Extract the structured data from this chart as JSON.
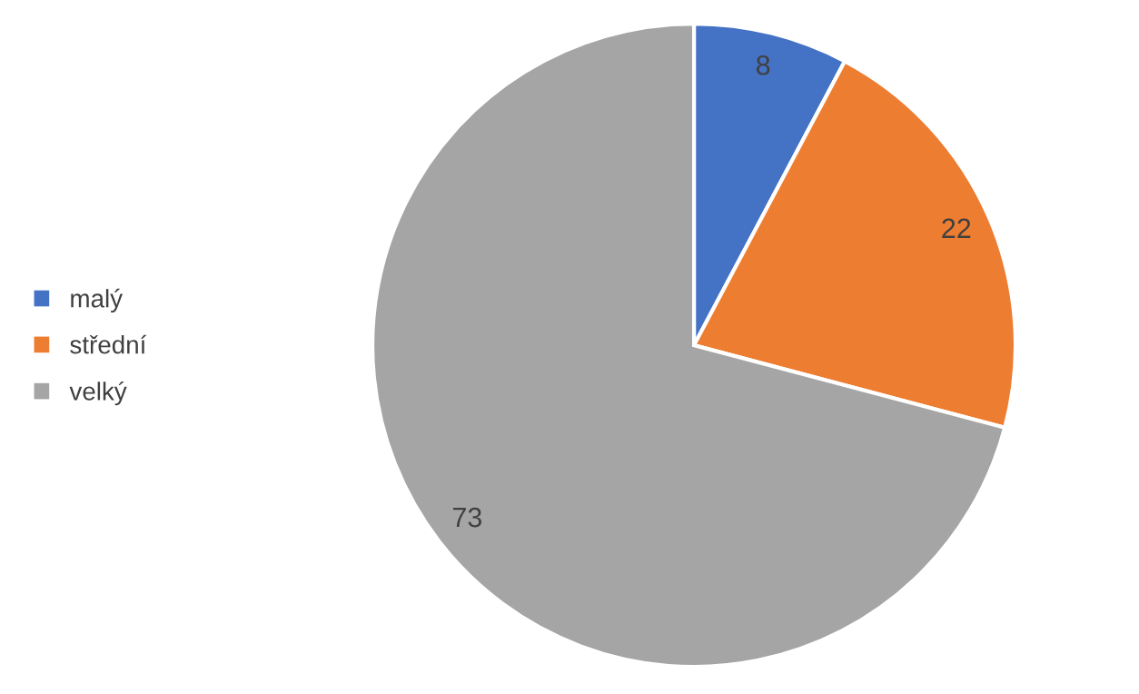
{
  "chart_data": {
    "type": "pie",
    "categories": [
      "malý",
      "střední",
      "velký"
    ],
    "values": [
      8,
      22,
      73
    ],
    "colors": [
      "#4472c4",
      "#ed7d31",
      "#a5a5a5"
    ],
    "data_labels": true,
    "legend": "left"
  }
}
